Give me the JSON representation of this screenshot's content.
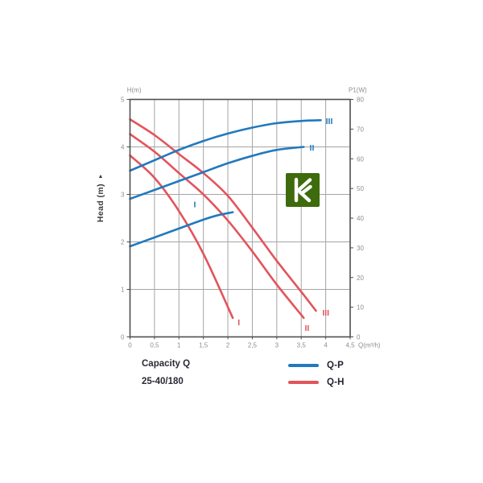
{
  "chart_data": {
    "type": "line",
    "description": "Pump performance curves: head (Q-H) and power (Q-P) vs capacity for three speeds I, II, III",
    "model": "25-40/180",
    "x_axis": {
      "axis_label": "Capacity Q",
      "unit": "Q(m³/h)",
      "min": 0,
      "max": 4.5,
      "grid_step": 0.5,
      "tick_values": [
        0,
        0.5,
        1,
        1.5,
        2,
        2.5,
        3,
        3.5,
        4,
        4.5
      ],
      "tick_labels": [
        "0",
        "0,5",
        "1",
        "1,5",
        "2",
        "2,5",
        "3",
        "3,5",
        "4",
        "4,5"
      ]
    },
    "y_left": {
      "title": "H(m)",
      "axis_label": "Head (m)",
      "min": 0,
      "max": 5,
      "tick_values": [
        0,
        1,
        2,
        3,
        4,
        5
      ],
      "grid_values": [
        1,
        2,
        3,
        4
      ]
    },
    "y_right": {
      "title": "P1(W)",
      "min": 0,
      "max": 80,
      "tick_values": [
        0,
        10,
        20,
        30,
        40,
        50,
        60,
        70,
        80
      ]
    },
    "colors": {
      "qp_blue": "#2279bd",
      "qh_red": "#e2545b",
      "grid": "#a5a5a5",
      "axis": "#4f4f4f",
      "tick_text": "#8d8d8d",
      "label_text": "#3a3a3a",
      "logo_green": "#3e6b0c"
    },
    "series": [
      {
        "name": "Q-H speed I",
        "curve": "Q-H",
        "axis": "left",
        "color": "#e2545b",
        "label": "I",
        "points": [
          [
            0,
            3.82
          ],
          [
            0.5,
            3.35
          ],
          [
            1,
            2.65
          ],
          [
            1.5,
            1.75
          ],
          [
            2.1,
            0.4
          ]
        ],
        "label_at": [
          2.2,
          0.3
        ]
      },
      {
        "name": "Q-H speed II",
        "curve": "Q-H",
        "axis": "left",
        "color": "#e2545b",
        "label": "II",
        "points": [
          [
            0,
            4.27
          ],
          [
            0.5,
            3.9
          ],
          [
            1,
            3.45
          ],
          [
            1.5,
            3.0
          ],
          [
            2,
            2.45
          ],
          [
            2.5,
            1.8
          ],
          [
            3,
            1.1
          ],
          [
            3.55,
            0.4
          ]
        ],
        "label_at": [
          3.57,
          0.18
        ]
      },
      {
        "name": "Q-H speed III",
        "curve": "Q-H",
        "axis": "left",
        "color": "#e2545b",
        "label": "III",
        "points": [
          [
            0,
            4.58
          ],
          [
            0.5,
            4.25
          ],
          [
            1,
            3.85
          ],
          [
            1.5,
            3.45
          ],
          [
            2,
            2.97
          ],
          [
            2.5,
            2.3
          ],
          [
            3,
            1.6
          ],
          [
            3.5,
            0.95
          ],
          [
            3.8,
            0.55
          ]
        ],
        "label_at": [
          3.93,
          0.5
        ]
      },
      {
        "name": "Q-P speed I",
        "curve": "Q-P",
        "axis": "right",
        "color": "#2279bd",
        "label": "I",
        "points": [
          [
            0,
            30.5
          ],
          [
            0.5,
            33.5
          ],
          [
            1,
            36.5
          ],
          [
            1.5,
            39.5
          ],
          [
            1.8,
            41
          ],
          [
            2.1,
            42
          ]
        ],
        "label_at": [
          1.3,
          44.5
        ]
      },
      {
        "name": "Q-P speed II",
        "curve": "Q-P",
        "axis": "right",
        "color": "#2279bd",
        "label": "II",
        "points": [
          [
            0,
            46.5
          ],
          [
            0.5,
            49.5
          ],
          [
            1,
            52.5
          ],
          [
            1.5,
            55.5
          ],
          [
            2,
            58.5
          ],
          [
            2.5,
            61
          ],
          [
            3,
            63
          ],
          [
            3.55,
            64
          ]
        ],
        "label_at": [
          3.67,
          63.6
        ]
      },
      {
        "name": "Q-P speed III",
        "curve": "Q-P",
        "axis": "right",
        "color": "#2279bd",
        "label": "III",
        "points": [
          [
            0,
            56
          ],
          [
            0.5,
            59.5
          ],
          [
            1,
            63
          ],
          [
            1.5,
            66
          ],
          [
            2,
            68.5
          ],
          [
            2.5,
            70.5
          ],
          [
            3,
            72
          ],
          [
            3.55,
            72.8
          ],
          [
            3.9,
            73
          ]
        ],
        "label_at": [
          4.0,
          72.6
        ]
      }
    ],
    "legend": [
      {
        "label": "Q-P",
        "color": "#2279bd"
      },
      {
        "label": "Q-H",
        "color": "#e2545b"
      }
    ],
    "captions": {
      "line1": "Capacity Q",
      "line2": "25-40/180"
    }
  }
}
